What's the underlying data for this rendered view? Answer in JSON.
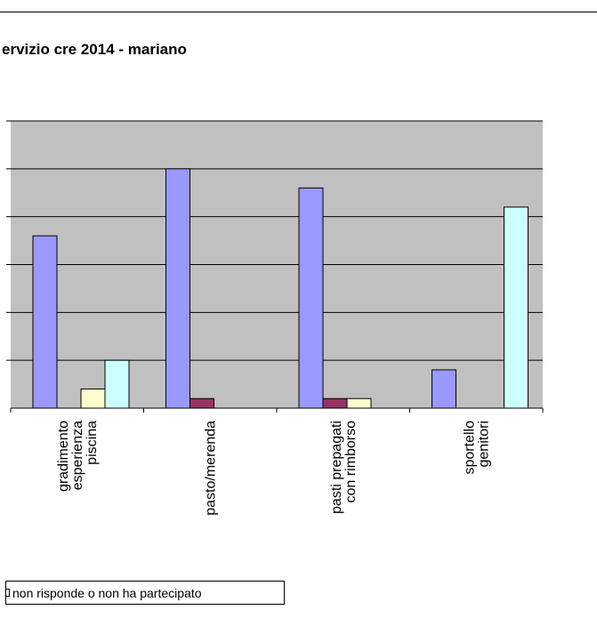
{
  "page": {
    "title": "ervizio cre 2014 - mariano",
    "legend_label": "non risponde o non ha partecipato"
  },
  "chart_data": {
    "type": "bar",
    "title": "ervizio cre 2014 - mariano",
    "categories": [
      [
        "gradimento",
        "esperienza",
        "piscina"
      ],
      [
        "pasto/merenda"
      ],
      [
        "pasti prepagati",
        "con rimborso"
      ],
      [
        "sportello",
        "genitori"
      ]
    ],
    "series": [
      {
        "color": "#9999ff",
        "values": [
          36,
          50,
          46,
          8
        ]
      },
      {
        "color": "#993366",
        "values": [
          0,
          2,
          2,
          0
        ]
      },
      {
        "name": "non risponde o non ha partecipato",
        "color": "#ffffcc",
        "values": [
          4,
          0,
          2,
          0
        ]
      },
      {
        "color": "#ccffff",
        "values": [
          10,
          0,
          0,
          42
        ]
      }
    ],
    "ylim": [
      0,
      60
    ],
    "grid": true,
    "legend": "bottom-left"
  }
}
